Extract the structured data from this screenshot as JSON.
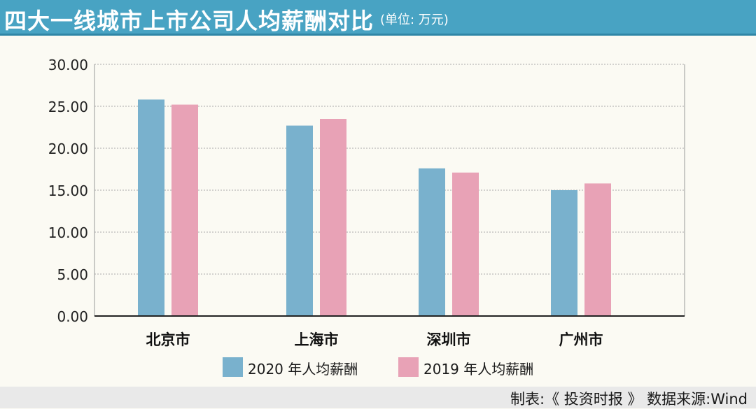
{
  "header": {
    "title": "四大一线城市上市公司人均薪酬对比",
    "unit": "(单位: 万元)"
  },
  "chart_data": {
    "type": "bar",
    "categories": [
      "北京市",
      "上海市",
      "深圳市",
      "广州市"
    ],
    "series": [
      {
        "name": "2020 年人均薪酬",
        "values": [
          25.8,
          22.7,
          17.6,
          15.0
        ],
        "color": "#79b1cd"
      },
      {
        "name": "2019 年人均薪酬",
        "values": [
          25.2,
          23.5,
          17.1,
          15.8
        ],
        "color": "#e8a2b6"
      }
    ],
    "ylim": [
      0,
      30
    ],
    "yticks": [
      "0.00",
      "5.00",
      "10.00",
      "15.00",
      "20.00",
      "25.00",
      "30.00"
    ],
    "grid": true,
    "legend_position": "bottom"
  },
  "footer": {
    "source": "制表:《 投资时报 》  数据来源:Wind"
  },
  "colors": {
    "title_bar": "#48a3c3",
    "background": "#fbfaf3",
    "footer_bar": "#e9e9e9"
  }
}
